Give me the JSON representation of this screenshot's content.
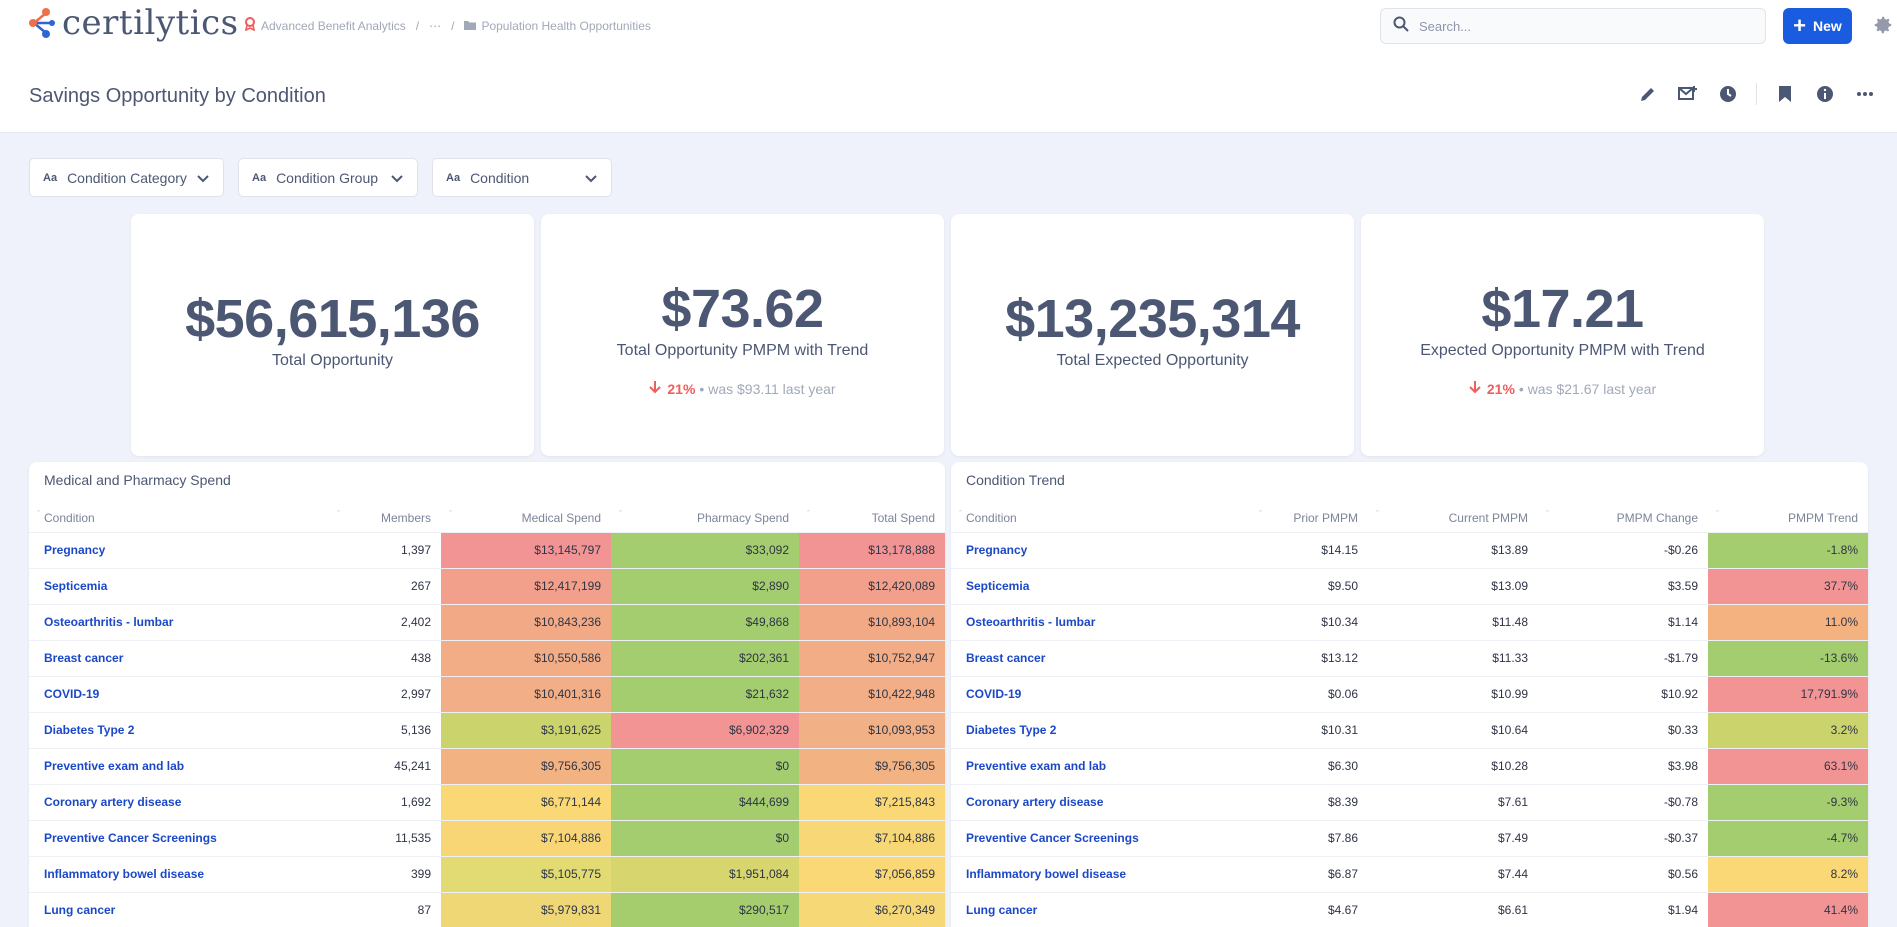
{
  "app": {
    "logo_text": "certilytics",
    "breadcrumbs": [
      "Advanced Benefit Analytics",
      "⋯",
      "Population Health Opportunities"
    ],
    "search_placeholder": "Search...",
    "new_label": "New"
  },
  "header": {
    "title": "Savings Opportunity by Condition"
  },
  "filters": [
    {
      "label": "Condition Category"
    },
    {
      "label": "Condition Group"
    },
    {
      "label": "Condition"
    }
  ],
  "kpis": [
    {
      "value": "$56,615,136",
      "label": "Total Opportunity"
    },
    {
      "value": "$73.62",
      "label": "Total Opportunity PMPM with Trend",
      "change": "21%",
      "was": "• was $93.11",
      "period": "last year"
    },
    {
      "value": "$13,235,314",
      "label": "Total Expected Opportunity"
    },
    {
      "value": "$17.21",
      "label": "Expected Opportunity PMPM with Trend",
      "change": "21%",
      "was": "• was $21.67",
      "period": "last year"
    }
  ],
  "spend_table": {
    "title": "Medical and Pharmacy Spend",
    "columns": [
      "Condition",
      "Members",
      "Medical Spend",
      "Pharmacy Spend",
      "Total Spend"
    ],
    "rows": [
      [
        "Pregnancy",
        "1,397",
        "$13,145,797",
        "$33,092",
        "$13,178,888"
      ],
      [
        "Septicemia",
        "267",
        "$12,417,199",
        "$2,890",
        "$12,420,089"
      ],
      [
        "Osteoarthritis - lumbar",
        "2,402",
        "$10,843,236",
        "$49,868",
        "$10,893,104"
      ],
      [
        "Breast cancer",
        "438",
        "$10,550,586",
        "$202,361",
        "$10,752,947"
      ],
      [
        "COVID-19",
        "2,997",
        "$10,401,316",
        "$21,632",
        "$10,422,948"
      ],
      [
        "Diabetes Type 2",
        "5,136",
        "$3,191,625",
        "$6,902,329",
        "$10,093,953"
      ],
      [
        "Preventive exam and lab",
        "45,241",
        "$9,756,305",
        "$0",
        "$9,756,305"
      ],
      [
        "Coronary artery disease",
        "1,692",
        "$6,771,144",
        "$444,699",
        "$7,215,843"
      ],
      [
        "Preventive Cancer Screenings",
        "11,535",
        "$7,104,886",
        "$0",
        "$7,104,886"
      ],
      [
        "Inflammatory bowel disease",
        "399",
        "$5,105,775",
        "$1,951,084",
        "$7,056,859"
      ],
      [
        "Lung cancer",
        "87",
        "$5,979,831",
        "$290,517",
        "$6,270,349"
      ]
    ],
    "cell_colors": [
      [
        "#f29494",
        "#a3cd6e",
        "#f29494"
      ],
      [
        "#f2a08c",
        "#a3cd6e",
        "#f2a08c"
      ],
      [
        "#f2aa86",
        "#a3cd6e",
        "#f2aa86"
      ],
      [
        "#f2ac86",
        "#a3cd6e",
        "#f2ac86"
      ],
      [
        "#f2ae86",
        "#a3cd6e",
        "#f2ae86"
      ],
      [
        "#cbd46c",
        "#f29494",
        "#f2b086"
      ],
      [
        "#f2b282",
        "#a3cd6e",
        "#f2b282"
      ],
      [
        "#f9d875",
        "#a5cd6e",
        "#f9d875"
      ],
      [
        "#f8d676",
        "#a3cd6e",
        "#f8d876"
      ],
      [
        "#e2da72",
        "#d6d56e",
        "#f9d875"
      ],
      [
        "#efd776",
        "#a5cd6e",
        "#f7d877"
      ]
    ]
  },
  "trend_table": {
    "title": "Condition Trend",
    "columns": [
      "Condition",
      "Prior PMPM",
      "Current PMPM",
      "PMPM Change",
      "PMPM Trend"
    ],
    "rows": [
      [
        "Pregnancy",
        "$14.15",
        "$13.89",
        "-$0.26",
        "-1.8%"
      ],
      [
        "Septicemia",
        "$9.50",
        "$13.09",
        "$3.59",
        "37.7%"
      ],
      [
        "Osteoarthritis - lumbar",
        "$10.34",
        "$11.48",
        "$1.14",
        "11.0%"
      ],
      [
        "Breast cancer",
        "$13.12",
        "$11.33",
        "-$1.79",
        "-13.6%"
      ],
      [
        "COVID-19",
        "$0.06",
        "$10.99",
        "$10.92",
        "17,791.9%"
      ],
      [
        "Diabetes Type 2",
        "$10.31",
        "$10.64",
        "$0.33",
        "3.2%"
      ],
      [
        "Preventive exam and lab",
        "$6.30",
        "$10.28",
        "$3.98",
        "63.1%"
      ],
      [
        "Coronary artery disease",
        "$8.39",
        "$7.61",
        "-$0.78",
        "-9.3%"
      ],
      [
        "Preventive Cancer Screenings",
        "$7.86",
        "$7.49",
        "-$0.37",
        "-4.7%"
      ],
      [
        "Inflammatory bowel disease",
        "$6.87",
        "$7.44",
        "$0.56",
        "8.2%"
      ],
      [
        "Lung cancer",
        "$4.67",
        "$6.61",
        "$1.94",
        "41.4%"
      ]
    ],
    "trend_colors": [
      "#a3cd6e",
      "#f29494",
      "#f5b281",
      "#a3cd6e",
      "#f29494",
      "#cbd46c",
      "#f29494",
      "#a3cd6e",
      "#a3cd6e",
      "#f9d875",
      "#f29494"
    ]
  },
  "colors": {
    "accent": "#1a5ce0",
    "link": "#1a48c7",
    "negative": "#ef5d5d",
    "logo_orange": "#ef6f4b",
    "logo_blue": "#2e64d4"
  }
}
